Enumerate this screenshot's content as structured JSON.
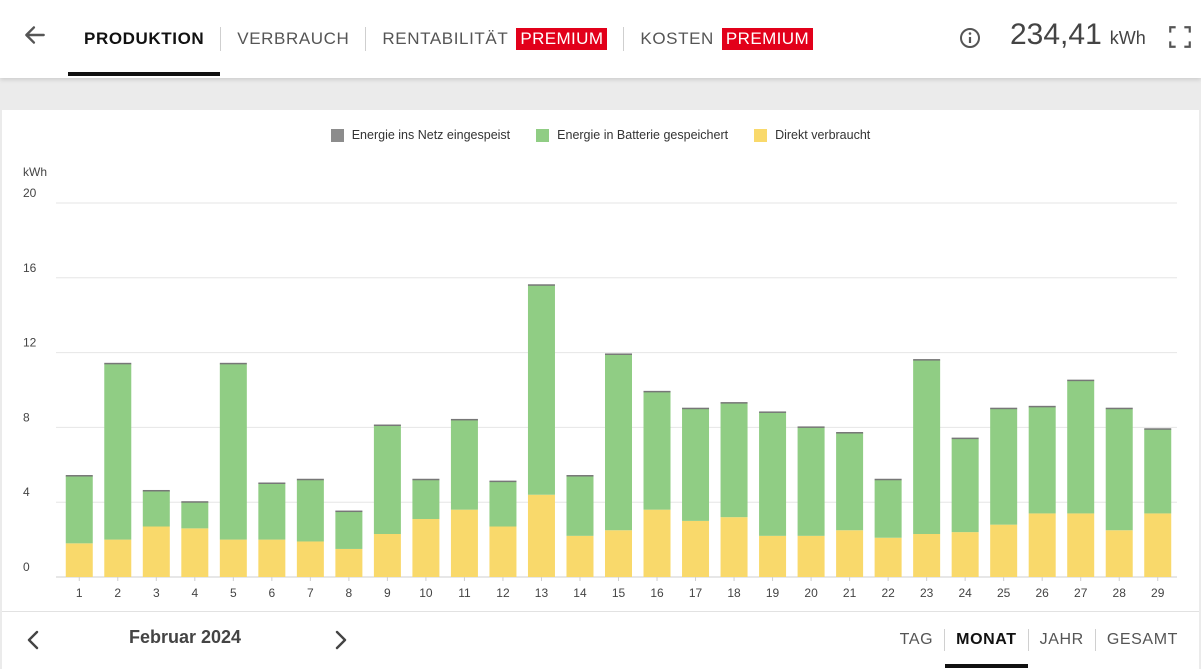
{
  "header": {
    "tabs": [
      {
        "label": "PRODUKTION",
        "active": true,
        "badge": ""
      },
      {
        "label": "VERBRAUCH",
        "active": false,
        "badge": ""
      },
      {
        "label": "RENTABILITÄT",
        "active": false,
        "badge": "PREMIUM"
      },
      {
        "label": "KOSTEN",
        "active": false,
        "badge": "PREMIUM"
      }
    ],
    "total_value": "234,41",
    "total_unit": "kWh",
    "icons": {
      "back": "arrow-left-icon",
      "info": "info-icon",
      "fullscreen": "fullscreen-icon"
    }
  },
  "colors": {
    "grid_feed": "#8c8c8c",
    "battery": "#90cd84",
    "direct": "#f9d96b",
    "accent": "#e2001a"
  },
  "footer": {
    "period_label": "Februar 2024",
    "range_tabs": [
      {
        "label": "TAG",
        "active": false
      },
      {
        "label": "MONAT",
        "active": true
      },
      {
        "label": "JAHR",
        "active": false
      },
      {
        "label": "GESAMT",
        "active": false
      }
    ]
  },
  "chart_data": {
    "type": "bar",
    "stacked": true,
    "ylabel": "kWh",
    "ylim": [
      0,
      20
    ],
    "yticks": [
      0,
      4,
      8,
      12,
      16,
      20
    ],
    "grid": true,
    "legend_position": "top-center",
    "categories": [
      "1",
      "2",
      "3",
      "4",
      "5",
      "6",
      "7",
      "8",
      "9",
      "10",
      "11",
      "12",
      "13",
      "14",
      "15",
      "16",
      "17",
      "18",
      "19",
      "20",
      "21",
      "22",
      "23",
      "24",
      "25",
      "26",
      "27",
      "28",
      "29"
    ],
    "series": [
      {
        "name": "Energie ins Netz eingespeist",
        "color": "#8c8c8c",
        "values": [
          0,
          0,
          0,
          0,
          0,
          0,
          0,
          0,
          0,
          0,
          0,
          0,
          0,
          0,
          0,
          0,
          0,
          0,
          0,
          0,
          0,
          0,
          0,
          0,
          0,
          0,
          0,
          0,
          0
        ]
      },
      {
        "name": "Energie in Batterie gespeichert",
        "color": "#90cd84",
        "values": [
          3.6,
          9.4,
          1.9,
          1.4,
          9.4,
          3.0,
          3.3,
          2.0,
          5.8,
          2.1,
          4.8,
          2.4,
          11.2,
          3.2,
          9.4,
          6.3,
          6.0,
          6.1,
          6.6,
          5.8,
          5.2,
          3.1,
          9.3,
          5.0,
          6.2,
          5.7,
          7.1,
          6.5,
          4.5
        ]
      },
      {
        "name": "Direkt verbraucht",
        "color": "#f9d96b",
        "values": [
          1.8,
          2.0,
          2.7,
          2.6,
          2.0,
          2.0,
          1.9,
          1.5,
          2.3,
          3.1,
          3.6,
          2.7,
          4.4,
          2.2,
          2.5,
          3.6,
          3.0,
          3.2,
          2.2,
          2.2,
          2.5,
          2.1,
          2.3,
          2.4,
          2.8,
          3.4,
          3.4,
          2.5,
          3.4
        ]
      }
    ]
  }
}
